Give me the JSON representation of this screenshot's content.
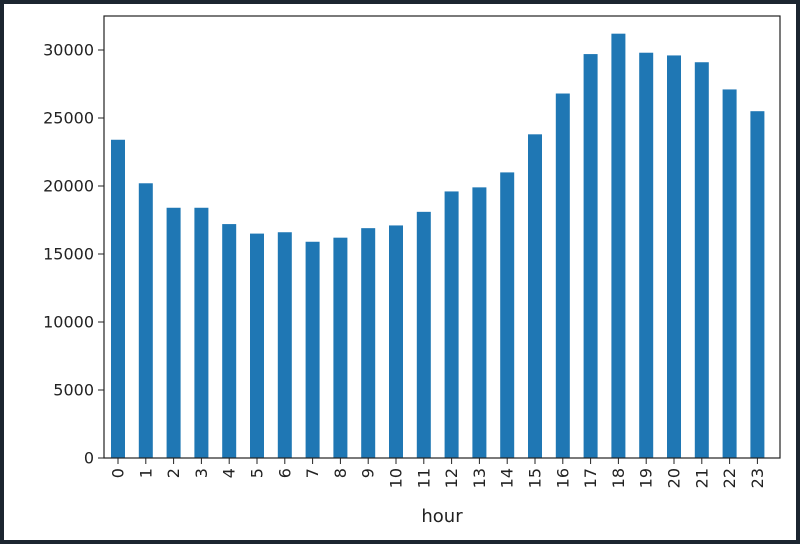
{
  "chart_data": {
    "type": "bar",
    "xlabel": "hour",
    "ylabel": "",
    "ylim": [
      0,
      32500
    ],
    "yticks": [
      0,
      5000,
      10000,
      15000,
      20000,
      25000,
      30000
    ],
    "categories": [
      "0",
      "1",
      "2",
      "3",
      "4",
      "5",
      "6",
      "7",
      "8",
      "9",
      "10",
      "11",
      "12",
      "13",
      "14",
      "15",
      "16",
      "17",
      "18",
      "19",
      "20",
      "21",
      "22",
      "23"
    ],
    "values": [
      23400,
      20200,
      18400,
      18400,
      17200,
      16500,
      16600,
      15900,
      16200,
      16900,
      17100,
      18100,
      19600,
      19900,
      21000,
      23800,
      26800,
      29700,
      31200,
      29800,
      29600,
      29100,
      27100,
      25500
    ],
    "bar_color": "#1f77b4",
    "grid": false,
    "legend": "none"
  }
}
